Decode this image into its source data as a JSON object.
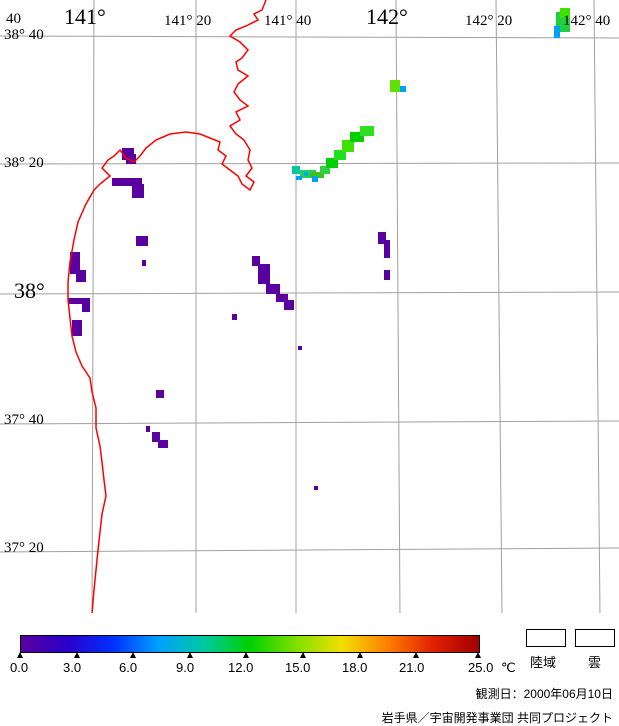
{
  "map": {
    "lat_labels": [
      {
        "text": "38°  40"
      },
      {
        "text": "38°  20"
      },
      {
        "text": "38°"
      },
      {
        "text": "37°  40"
      },
      {
        "text": "37°  20"
      }
    ],
    "lon_labels": [
      {
        "text": "141°"
      },
      {
        "text": "141°  20"
      },
      {
        "text": "141°  40"
      },
      {
        "text": "142°"
      },
      {
        "text": "142°  20"
      },
      {
        "text": "142°  40"
      },
      {
        "text": "40"
      }
    ],
    "coastline_color": "#ff0000",
    "grid_color": "#a0a0a0"
  },
  "colorbar": {
    "ticks": [
      "0.0",
      "3.0",
      "6.0",
      "9.0",
      "12.0",
      "15.0",
      "18.0",
      "21.0",
      "25.0"
    ],
    "unit": "℃",
    "colors": [
      "#5a00a0",
      "#2a00c8",
      "#0030ff",
      "#00a0ff",
      "#00c8a0",
      "#00d000",
      "#80e000",
      "#f0e000",
      "#ff8000",
      "#e02000",
      "#a00000"
    ]
  },
  "legend": {
    "land_label": "陸域",
    "cloud_label": "雲"
  },
  "footer": {
    "observation_date": "観測日：2000年06月10日",
    "credit": "岩手県／宇宙開発事業団  共同プロジェクト"
  }
}
